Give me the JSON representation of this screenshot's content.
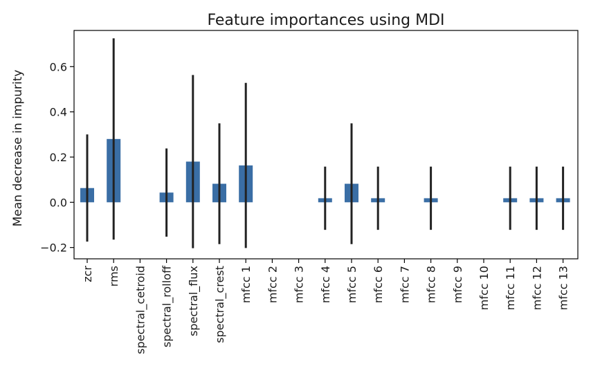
{
  "chart_data": {
    "type": "bar",
    "title": "Feature importances using MDI",
    "xlabel": "",
    "ylabel": "Mean decrease in impurity",
    "categories": [
      "zcr",
      "rms",
      "spectral_cetroid",
      "spectral_rolloff",
      "spectral_flux",
      "spectral_crest",
      "mfcc 1",
      "mfcc 2",
      "mfcc 3",
      "mfcc 4",
      "mfcc 5",
      "mfcc 6",
      "mfcc 7",
      "mfcc 8",
      "mfcc 9",
      "mfcc 10",
      "mfcc 11",
      "mfcc 12",
      "mfcc 13"
    ],
    "values": [
      0.063,
      0.28,
      0.0,
      0.043,
      0.18,
      0.082,
      0.163,
      0.0,
      0.0,
      0.018,
      0.082,
      0.018,
      0.0,
      0.018,
      0.0,
      0.0,
      0.018,
      0.018,
      0.018
    ],
    "error": [
      0.237,
      0.445,
      0.0,
      0.195,
      0.383,
      0.267,
      0.365,
      0.0,
      0.0,
      0.14,
      0.267,
      0.14,
      0.0,
      0.14,
      0.0,
      0.0,
      0.14,
      0.14,
      0.14
    ],
    "ylim": [
      -0.25,
      0.76
    ],
    "yticks": [
      -0.2,
      0.0,
      0.2,
      0.4,
      0.6
    ],
    "ytick_labels": [
      "−0.2",
      "0.0",
      "0.2",
      "0.4",
      "0.6"
    ],
    "grid": false,
    "bar_color": "#3a6ea5",
    "error_color": "#222222"
  }
}
